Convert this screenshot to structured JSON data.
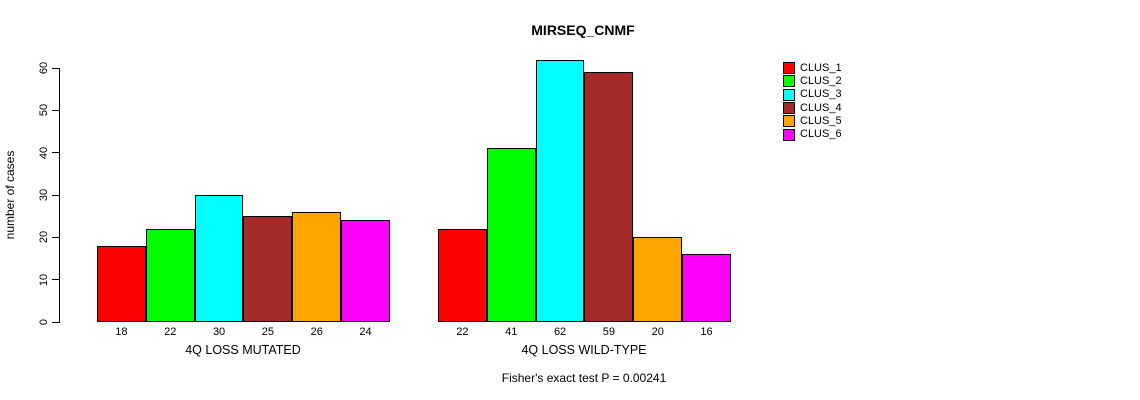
{
  "chart_data": {
    "type": "bar",
    "title": "MIRSEQ_CNMF",
    "ylabel": "number of cases",
    "xlabel": "",
    "groups": [
      "4Q LOSS MUTATED",
      "4Q LOSS WILD-TYPE"
    ],
    "series": [
      {
        "name": "CLUS_1",
        "color": "#FF0000",
        "values": [
          18,
          22
        ]
      },
      {
        "name": "CLUS_2",
        "color": "#00FF00",
        "values": [
          22,
          41
        ]
      },
      {
        "name": "CLUS_3",
        "color": "#00FFFF",
        "values": [
          30,
          62
        ]
      },
      {
        "name": "CLUS_4",
        "color": "#A52A2A",
        "values": [
          25,
          59
        ]
      },
      {
        "name": "CLUS_5",
        "color": "#FFA500",
        "values": [
          26,
          20
        ]
      },
      {
        "name": "CLUS_6",
        "color": "#FF00FF",
        "values": [
          24,
          16
        ]
      }
    ],
    "yticks": [
      0,
      10,
      20,
      30,
      40,
      50,
      60
    ],
    "ylim": [
      0,
      62
    ],
    "grid": false,
    "legend_position": "right",
    "bar_value_labels_shown": true,
    "annotation": "Fisher's exact test P = 0.00241"
  }
}
